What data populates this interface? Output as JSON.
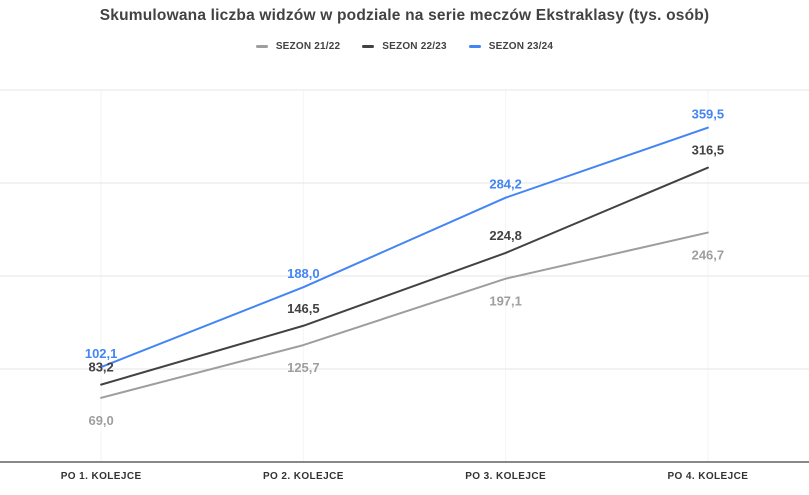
{
  "chart_data": {
    "type": "line",
    "title": "Skumulowana liczba widzów w podziale na serie meczów Ekstraklasy (tys. osób)",
    "categories": [
      "PO 1. KOLEJCE",
      "PO 2. KOLEJCE",
      "PO 3. KOLEJCE",
      "PO 4. KOLEJCE"
    ],
    "series": [
      {
        "name": "SEZON 21/22",
        "color": "#9e9e9e",
        "values": [
          69.0,
          125.7,
          197.1,
          246.7
        ],
        "labels": [
          "69,0",
          "125,7",
          "197,1",
          "246,7"
        ],
        "label_position": "below"
      },
      {
        "name": "SEZON 22/23",
        "color": "#424242",
        "values": [
          83.2,
          146.5,
          224.8,
          316.5
        ],
        "labels": [
          "83,2",
          "146,5",
          "224,8",
          "316,5"
        ],
        "label_position": "above"
      },
      {
        "name": "SEZON 23/24",
        "color": "#4285f4",
        "values": [
          102.1,
          188.0,
          284.2,
          359.5
        ],
        "labels": [
          "102,1",
          "188,0",
          "284,2",
          "359,5"
        ],
        "label_position": "above"
      }
    ],
    "xlabel": "",
    "ylabel": "",
    "unit": "tys. osób",
    "ylim": [
      0,
      400
    ],
    "grid_step": 100,
    "grid": true,
    "legend_position": "top"
  },
  "colors": {
    "background": "#ffffff",
    "gridline": "#e6e6e6",
    "gridline_vertical": "#f4f4f4",
    "axis_line": "#424242",
    "title_text": "#424242",
    "axis_label_text": "#333333"
  }
}
